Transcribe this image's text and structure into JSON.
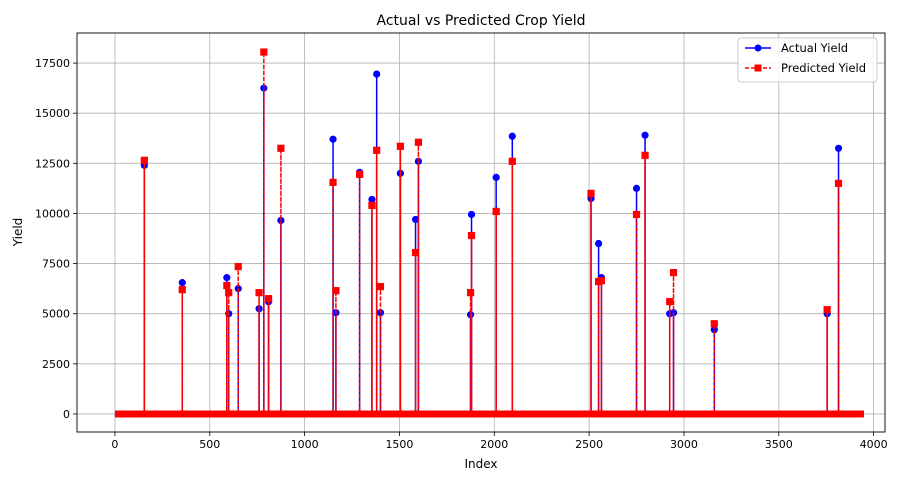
{
  "chart_data": {
    "type": "line",
    "title": "Actual vs Predicted Crop Yield",
    "xlabel": "Index",
    "ylabel": "Yield",
    "xlim": [
      -200,
      4060
    ],
    "ylim": [
      -900,
      19000
    ],
    "xticks": [
      0,
      500,
      1000,
      1500,
      2000,
      2500,
      3000,
      3500,
      4000
    ],
    "xtick_labels": [
      "0",
      "500",
      "1000",
      "1500",
      "2000",
      "2500",
      "3000",
      "3500",
      "4000"
    ],
    "yticks": [
      0,
      2500,
      5000,
      7500,
      10000,
      12500,
      15000,
      17500
    ],
    "ytick_labels": [
      "0",
      "2500",
      "5000",
      "7500",
      "10000",
      "12500",
      "15000",
      "17500"
    ],
    "grid": true,
    "legend_position": "top-right",
    "n_points": 3950,
    "baseline_value": 0,
    "series": [
      {
        "name": "Actual Yield",
        "color": "#0000ff",
        "line_style": "solid",
        "marker": "circle",
        "spikes": [
          {
            "x": 155,
            "y": 12400
          },
          {
            "x": 355,
            "y": 6550
          },
          {
            "x": 590,
            "y": 6800
          },
          {
            "x": 600,
            "y": 5000
          },
          {
            "x": 650,
            "y": 6250
          },
          {
            "x": 760,
            "y": 5250
          },
          {
            "x": 785,
            "y": 16250
          },
          {
            "x": 810,
            "y": 5600
          },
          {
            "x": 875,
            "y": 9650
          },
          {
            "x": 1150,
            "y": 13700
          },
          {
            "x": 1165,
            "y": 5050
          },
          {
            "x": 1290,
            "y": 12050
          },
          {
            "x": 1355,
            "y": 10700
          },
          {
            "x": 1380,
            "y": 16950
          },
          {
            "x": 1400,
            "y": 5050
          },
          {
            "x": 1505,
            "y": 12000
          },
          {
            "x": 1585,
            "y": 9700
          },
          {
            "x": 1600,
            "y": 12600
          },
          {
            "x": 1875,
            "y": 4950
          },
          {
            "x": 1880,
            "y": 9950
          },
          {
            "x": 2010,
            "y": 11800
          },
          {
            "x": 2095,
            "y": 13850
          },
          {
            "x": 2510,
            "y": 10750
          },
          {
            "x": 2550,
            "y": 8500
          },
          {
            "x": 2565,
            "y": 6800
          },
          {
            "x": 2750,
            "y": 11250
          },
          {
            "x": 2795,
            "y": 13900
          },
          {
            "x": 2925,
            "y": 5000
          },
          {
            "x": 2945,
            "y": 5050
          },
          {
            "x": 3160,
            "y": 4200
          },
          {
            "x": 3755,
            "y": 5000
          },
          {
            "x": 3815,
            "y": 13250
          }
        ]
      },
      {
        "name": "Predicted Yield",
        "color": "#ff0000",
        "line_style": "dashed",
        "marker": "square",
        "spikes": [
          {
            "x": 155,
            "y": 12650
          },
          {
            "x": 355,
            "y": 6200
          },
          {
            "x": 590,
            "y": 6400
          },
          {
            "x": 600,
            "y": 6050
          },
          {
            "x": 650,
            "y": 7350
          },
          {
            "x": 760,
            "y": 6050
          },
          {
            "x": 785,
            "y": 18050
          },
          {
            "x": 810,
            "y": 5750
          },
          {
            "x": 875,
            "y": 13250
          },
          {
            "x": 1150,
            "y": 11550
          },
          {
            "x": 1165,
            "y": 6150
          },
          {
            "x": 1290,
            "y": 11950
          },
          {
            "x": 1355,
            "y": 10400
          },
          {
            "x": 1380,
            "y": 13150
          },
          {
            "x": 1400,
            "y": 6350
          },
          {
            "x": 1505,
            "y": 13350
          },
          {
            "x": 1585,
            "y": 8050
          },
          {
            "x": 1600,
            "y": 13550
          },
          {
            "x": 1875,
            "y": 6050
          },
          {
            "x": 1880,
            "y": 8900
          },
          {
            "x": 2010,
            "y": 10100
          },
          {
            "x": 2095,
            "y": 12600
          },
          {
            "x": 2510,
            "y": 11000
          },
          {
            "x": 2550,
            "y": 6600
          },
          {
            "x": 2565,
            "y": 6650
          },
          {
            "x": 2750,
            "y": 9950
          },
          {
            "x": 2795,
            "y": 12900
          },
          {
            "x": 2925,
            "y": 5600
          },
          {
            "x": 2945,
            "y": 7050
          },
          {
            "x": 3160,
            "y": 4500
          },
          {
            "x": 3755,
            "y": 5200
          },
          {
            "x": 3815,
            "y": 11500
          }
        ]
      }
    ]
  }
}
